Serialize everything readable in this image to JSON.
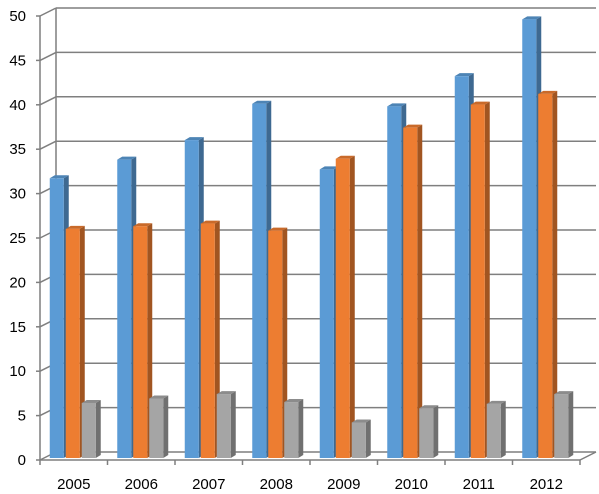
{
  "chart_data": {
    "type": "bar",
    "title": "",
    "xlabel": "",
    "ylabel": "",
    "categories": [
      "2005",
      "2006",
      "2007",
      "2008",
      "2009",
      "2010",
      "2011",
      "2012"
    ],
    "series": [
      {
        "values": [
          31.5,
          33.6,
          35.8,
          39.9,
          32.5,
          39.6,
          43.0,
          49.4
        ],
        "color": "#5b9bd5"
      },
      {
        "values": [
          25.8,
          26.1,
          26.4,
          25.6,
          33.7,
          37.2,
          39.8,
          41.0
        ],
        "color": "#ed7d31"
      },
      {
        "values": [
          6.2,
          6.7,
          7.2,
          6.3,
          4.0,
          5.6,
          6.1,
          7.2
        ],
        "color": "#a5a5a5"
      }
    ],
    "ylim": [
      0,
      50
    ],
    "yticks": [
      0,
      5,
      10,
      15,
      20,
      25,
      30,
      35,
      40,
      45,
      50
    ],
    "grid": true,
    "style": "3d-column",
    "legend": "none"
  }
}
